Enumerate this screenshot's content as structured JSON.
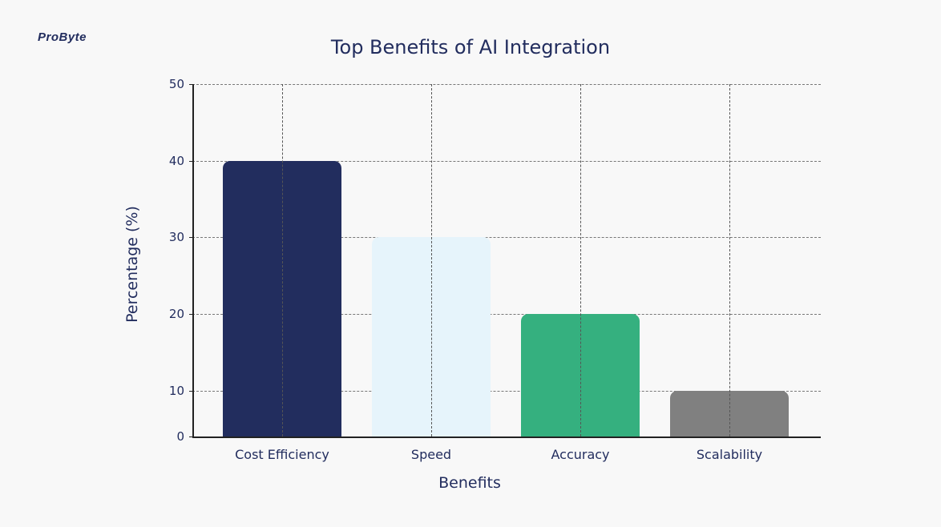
{
  "logo": {
    "text": "ProByte"
  },
  "chart_data": {
    "type": "bar",
    "title": "Top Benefits of AI Integration",
    "xlabel": "Benefits",
    "ylabel": "Percentage (%)",
    "categories": [
      "Cost Efficiency",
      "Speed",
      "Accuracy",
      "Scalability"
    ],
    "values": [
      40,
      30,
      20,
      10
    ],
    "colors": [
      "#222d5e",
      "#e6f4fb",
      "#35b07f",
      "#808080"
    ],
    "yticks": [
      0,
      10,
      20,
      30,
      40,
      50
    ],
    "ylim": [
      4,
      50
    ],
    "grid": true,
    "legend": "none"
  }
}
